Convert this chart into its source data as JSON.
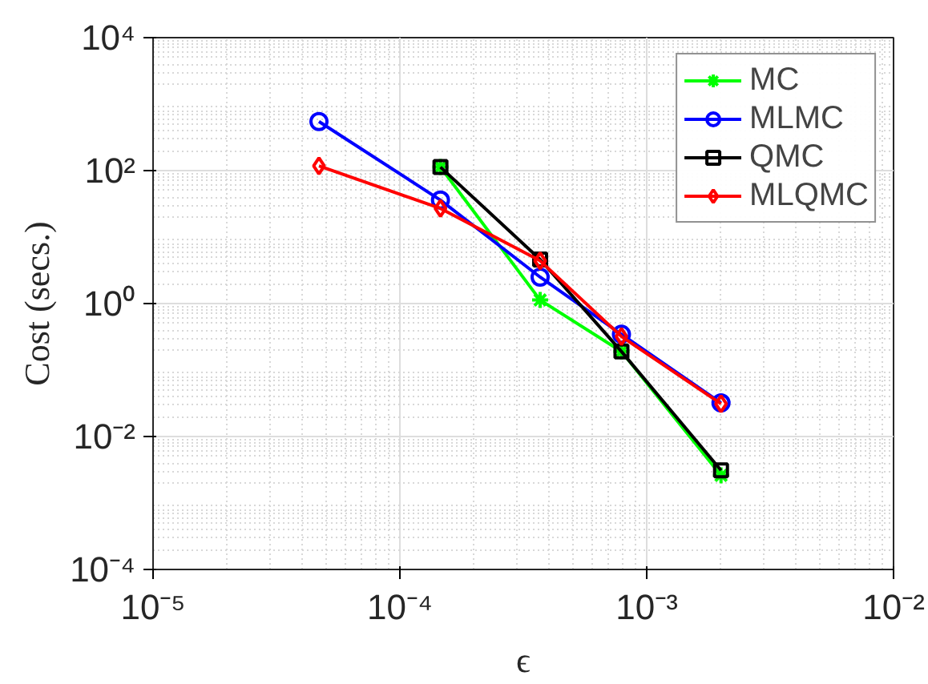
{
  "chart_data": {
    "type": "line",
    "xlabel": "ϵ",
    "ylabel": "Cost (secs.)",
    "log": "xy",
    "grid": true,
    "legend": "top right",
    "xlim": [
      1e-05,
      0.01
    ],
    "ylim": [
      0.0001,
      10000.0
    ],
    "xticks": [
      {
        "value": 1e-05,
        "label": "10⁻⁵"
      },
      {
        "value": 0.0001,
        "label": "10⁻⁴"
      },
      {
        "value": 0.001,
        "label": "10⁻³"
      },
      {
        "value": 0.01,
        "label": "10⁻²"
      }
    ],
    "yticks": [
      {
        "value": 0.0001,
        "label": "10⁻⁴"
      },
      {
        "value": 0.01,
        "label": "10⁻²"
      },
      {
        "value": 1,
        "label": "10⁰"
      },
      {
        "value": 100,
        "label": "10²"
      },
      {
        "value": 10000.0,
        "label": "10⁴"
      }
    ],
    "series": [
      {
        "name": "MC",
        "color": "#00ff00",
        "marker": "cross",
        "x": [
          0.000146,
          0.00037,
          0.00079,
          0.002
        ],
        "values": [
          113,
          1.13,
          0.19,
          0.0026
        ]
      },
      {
        "name": "MLMC",
        "color": "#0000ff",
        "marker": "circle",
        "x": [
          4.7e-05,
          0.000146,
          0.00037,
          0.00079,
          0.002
        ],
        "values": [
          547,
          36,
          2.5,
          0.345,
          0.032
        ]
      },
      {
        "name": "QMC",
        "color": "#000000",
        "marker": "square",
        "x": [
          0.000146,
          0.00037,
          0.00079,
          0.002
        ],
        "values": [
          113,
          4.6,
          0.19,
          0.0031
        ]
      },
      {
        "name": "MLQMC",
        "color": "#ff0000",
        "marker": "diamond",
        "x": [
          4.7e-05,
          0.000146,
          0.00037,
          0.00079,
          0.002
        ],
        "values": [
          118,
          27,
          4.4,
          0.32,
          0.031
        ]
      }
    ]
  }
}
